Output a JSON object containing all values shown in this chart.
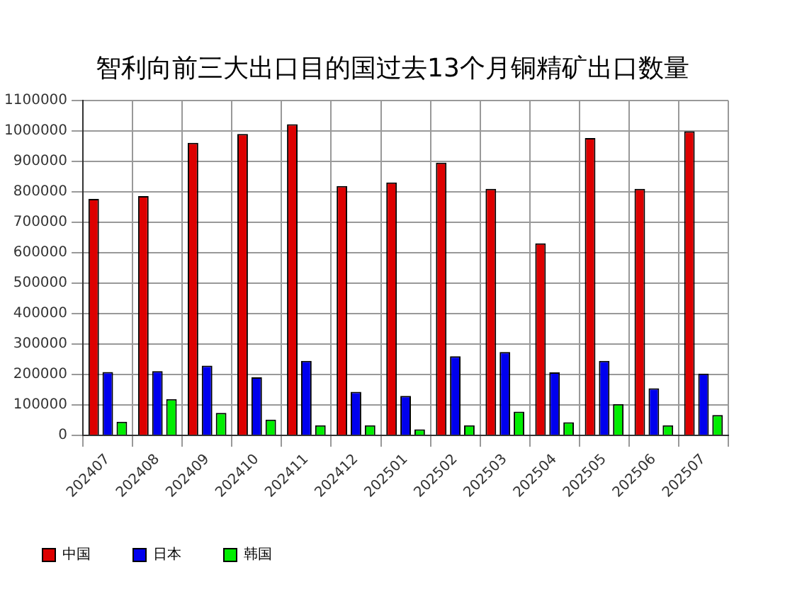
{
  "chart_data": {
    "type": "bar",
    "title": "智利向前三大出口目的国过去13个月铜精矿出口数量",
    "categories": [
      "202407",
      "202408",
      "202409",
      "202410",
      "202411",
      "202412",
      "202501",
      "202502",
      "202503",
      "202504",
      "202505",
      "202506",
      "202507"
    ],
    "series": [
      {
        "name": "中国",
        "color": "#dd0000",
        "values": [
          777000,
          786000,
          961000,
          990000,
          1022000,
          819000,
          831000,
          896000,
          810000,
          631000,
          977000,
          810000,
          999000
        ]
      },
      {
        "name": "日本",
        "color": "#0000ee",
        "values": [
          208000,
          211000,
          229000,
          191000,
          245000,
          143000,
          130000,
          260000,
          274000,
          207000,
          245000,
          155000,
          203000
        ]
      },
      {
        "name": "韩国",
        "color": "#00ee00",
        "values": [
          45000,
          119000,
          74000,
          52000,
          33000,
          33000,
          20000,
          33000,
          78000,
          43000,
          103000,
          33000,
          67000
        ]
      }
    ],
    "ylim": [
      0,
      1100000
    ],
    "yticks": [
      0,
      100000,
      200000,
      300000,
      400000,
      500000,
      600000,
      700000,
      800000,
      900000,
      1000000,
      1100000
    ],
    "grid": true,
    "legend": "bottom left"
  }
}
